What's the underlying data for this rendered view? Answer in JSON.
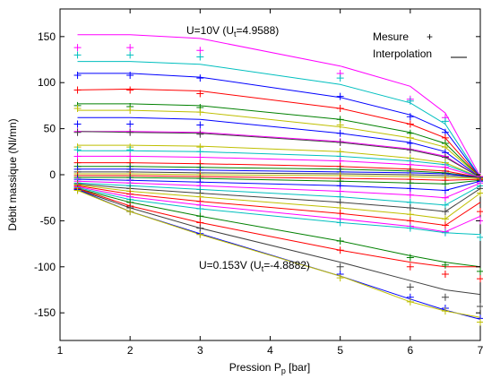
{
  "chart_data": {
    "type": "line",
    "xlabel": "Pression P",
    "xlabel_sub": "p",
    "xlabel_suffix": " [bar]",
    "ylabel": "Débit massique (Nl/mn)",
    "xlim": [
      1,
      7
    ],
    "ylim": [
      -180,
      180
    ],
    "xticks": [
      1,
      2,
      3,
      4,
      5,
      6,
      7
    ],
    "yticks": [
      -150,
      -100,
      -50,
      0,
      50,
      100,
      150
    ],
    "grid": false,
    "legend": {
      "position": "top-right",
      "measure_label": "Mesure",
      "measure_symbol": "+",
      "interp_label": "Interpolation",
      "interp_symbol": "__"
    },
    "annotations": {
      "top_prefix": "U=10V (U",
      "top_sub": "t",
      "top_suffix": "=4.9588)",
      "bottom_prefix": "U=0.153V (U",
      "bottom_sub": "t",
      "bottom_suffix": "=-4.8882)"
    },
    "x": [
      1.25,
      2,
      3,
      5,
      6,
      6.5,
      7
    ],
    "series": [
      {
        "color": "#ff00ff",
        "line": [
          152,
          152,
          148,
          118,
          96,
          67,
          -2
        ],
        "markers": [
          138,
          138,
          135,
          110,
          82,
          62,
          -2
        ]
      },
      {
        "color": "#00bfbf",
        "line": [
          123,
          123,
          120,
          98,
          78,
          55,
          -3
        ],
        "markers": [
          130,
          130,
          128,
          105,
          80,
          58,
          -3
        ]
      },
      {
        "color": "#0000ff",
        "line": [
          110,
          110,
          106,
          84,
          65,
          48,
          -3
        ],
        "markers": [
          108,
          108,
          105,
          85,
          63,
          46,
          -3
        ]
      },
      {
        "color": "#ff0000",
        "line": [
          92,
          93,
          91,
          72,
          55,
          40,
          -3
        ],
        "markers": [
          92,
          92,
          88,
          72,
          55,
          40,
          -3
        ]
      },
      {
        "color": "#008000",
        "line": [
          77,
          77,
          75,
          60,
          46,
          34,
          -3
        ],
        "markers": [
          75,
          74,
          73,
          60,
          45,
          34,
          -3
        ]
      },
      {
        "color": "#bfbf00",
        "line": [
          70,
          70,
          68,
          52,
          40,
          30,
          -3
        ],
        "markers": [
          72,
          70,
          68,
          54,
          40,
          30,
          -3
        ]
      },
      {
        "color": "#0000ff",
        "line": [
          62,
          62,
          60,
          45,
          35,
          25,
          -3
        ],
        "markers": [
          55,
          55,
          54,
          45,
          34,
          24,
          -3
        ]
      },
      {
        "color": "#ff00ff",
        "line": [
          47,
          47,
          46,
          36,
          28,
          20,
          -3
        ],
        "markers": [
          47,
          47,
          46,
          36,
          27,
          20,
          -3
        ]
      },
      {
        "color": "#404040",
        "line": [
          47,
          46,
          45,
          35,
          27,
          19,
          -3
        ],
        "markers": [
          46,
          46,
          44,
          35,
          27,
          19,
          -3
        ]
      },
      {
        "color": "#bfbf00",
        "line": [
          32,
          32,
          31,
          25,
          18,
          13,
          -3
        ],
        "markers": [
          30,
          30,
          30,
          25,
          18,
          13,
          -3
        ]
      },
      {
        "color": "#00bfbf",
        "line": [
          26,
          26,
          25,
          20,
          15,
          11,
          -3
        ],
        "markers": [
          27,
          27,
          25,
          20,
          15,
          11,
          -3
        ]
      },
      {
        "color": "#ff00ff",
        "line": [
          20,
          20,
          19,
          15,
          11,
          8,
          -3
        ],
        "markers": [
          20,
          20,
          19,
          15,
          11,
          8,
          -3
        ]
      },
      {
        "color": "#ff0000",
        "line": [
          13,
          13,
          12,
          9,
          6,
          4,
          -3
        ],
        "markers": [
          13,
          13,
          12,
          9,
          6,
          4,
          -3
        ]
      },
      {
        "color": "#008000",
        "line": [
          9,
          9,
          8,
          6,
          4,
          2,
          -3
        ],
        "markers": [
          9,
          9,
          8,
          6,
          4,
          2,
          -3
        ]
      },
      {
        "color": "#0000ff",
        "line": [
          6,
          6,
          5,
          3,
          2,
          1,
          -3
        ],
        "markers": [
          6,
          6,
          5,
          3,
          2,
          1,
          -3
        ]
      },
      {
        "color": "#404040",
        "line": [
          3,
          3,
          2,
          1,
          0,
          -1,
          -3
        ],
        "markers": [
          3,
          3,
          2,
          1,
          0,
          -1,
          -3
        ]
      },
      {
        "color": "#bfbf00",
        "line": [
          1,
          1,
          0,
          -1,
          -2,
          -3,
          -4
        ],
        "markers": [
          1,
          1,
          0,
          -1,
          -2,
          -3,
          -4
        ]
      },
      {
        "color": "#ff0000",
        "line": [
          -1,
          -1,
          -2,
          -4,
          -5,
          -6,
          -5
        ],
        "markers": [
          -1,
          -1,
          -2,
          -4,
          -5,
          -6,
          -5
        ]
      },
      {
        "color": "#008000",
        "line": [
          -3,
          -3,
          -4,
          -7,
          -9,
          -10,
          -6
        ],
        "markers": [
          -3,
          -3,
          -4,
          -7,
          -9,
          -10,
          -6
        ]
      },
      {
        "color": "#0000ff",
        "line": [
          -5,
          -6,
          -8,
          -12,
          -15,
          -17,
          -7
        ],
        "markers": [
          -5,
          -6,
          -8,
          -12,
          -15,
          -17,
          -7
        ]
      },
      {
        "color": "#ff00ff",
        "line": [
          -7,
          -9,
          -12,
          -18,
          -22,
          -25,
          -9
        ],
        "markers": [
          -7,
          -9,
          -12,
          -18,
          -22,
          -25,
          -9
        ]
      },
      {
        "color": "#00bfbf",
        "line": [
          -9,
          -12,
          -16,
          -24,
          -30,
          -33,
          -12
        ],
        "markers": [
          -9,
          -12,
          -16,
          -24,
          -30,
          -33,
          -12
        ]
      },
      {
        "color": "#404040",
        "line": [
          -10,
          -15,
          -20,
          -30,
          -36,
          -40,
          -15
        ],
        "markers": [
          -10,
          -15,
          -20,
          -30,
          -36,
          -40,
          -15
        ]
      },
      {
        "color": "#bfbf00",
        "line": [
          -11,
          -18,
          -24,
          -36,
          -43,
          -48,
          -20
        ],
        "markers": [
          -11,
          -18,
          -24,
          -36,
          -43,
          -48,
          -20
        ]
      },
      {
        "color": "#ff0000",
        "line": [
          -12,
          -21,
          -29,
          -42,
          -50,
          -55,
          -30
        ],
        "markers": [
          -12,
          -21,
          -29,
          -42,
          -50,
          -55,
          -40
        ]
      },
      {
        "color": "#ff00ff",
        "line": [
          -13,
          -24,
          -33,
          -48,
          -56,
          -62,
          -45
        ],
        "markers": [
          -13,
          -24,
          -33,
          -48,
          -56,
          -62,
          -50
        ]
      },
      {
        "color": "#00bfbf",
        "line": [
          -14,
          -27,
          -37,
          -52,
          -58,
          -63,
          -65
        ],
        "markers": [
          -14,
          -27,
          -37,
          -52,
          -58,
          -63,
          -68
        ]
      },
      {
        "color": "#008000",
        "line": [
          -15,
          -30,
          -45,
          -72,
          -88,
          -95,
          -100
        ],
        "markers": [
          -15,
          -30,
          -45,
          -72,
          -90,
          -98,
          -105
        ]
      },
      {
        "color": "#ff0000",
        "line": [
          -15,
          -34,
          -52,
          -82,
          -95,
          -100,
          -100
        ],
        "markers": [
          -15,
          -34,
          -52,
          -82,
          -100,
          -108,
          -113
        ]
      },
      {
        "color": "#404040",
        "line": [
          -16,
          -36,
          -58,
          -95,
          -115,
          -125,
          -130
        ],
        "markers": [
          -16,
          -36,
          -58,
          -100,
          -122,
          -133,
          -143
        ]
      },
      {
        "color": "#0000ff",
        "line": [
          -16,
          -40,
          -64,
          -110,
          -135,
          -147,
          -157
        ],
        "markers": [
          -16,
          -40,
          -64,
          -108,
          -133,
          -145,
          -156
        ]
      },
      {
        "color": "#bfbf00",
        "line": [
          -17,
          -40,
          -65,
          -110,
          -138,
          -148,
          -155
        ],
        "markers": [
          -17,
          -40,
          -65,
          -112,
          -138,
          -148,
          -160
        ]
      }
    ]
  }
}
